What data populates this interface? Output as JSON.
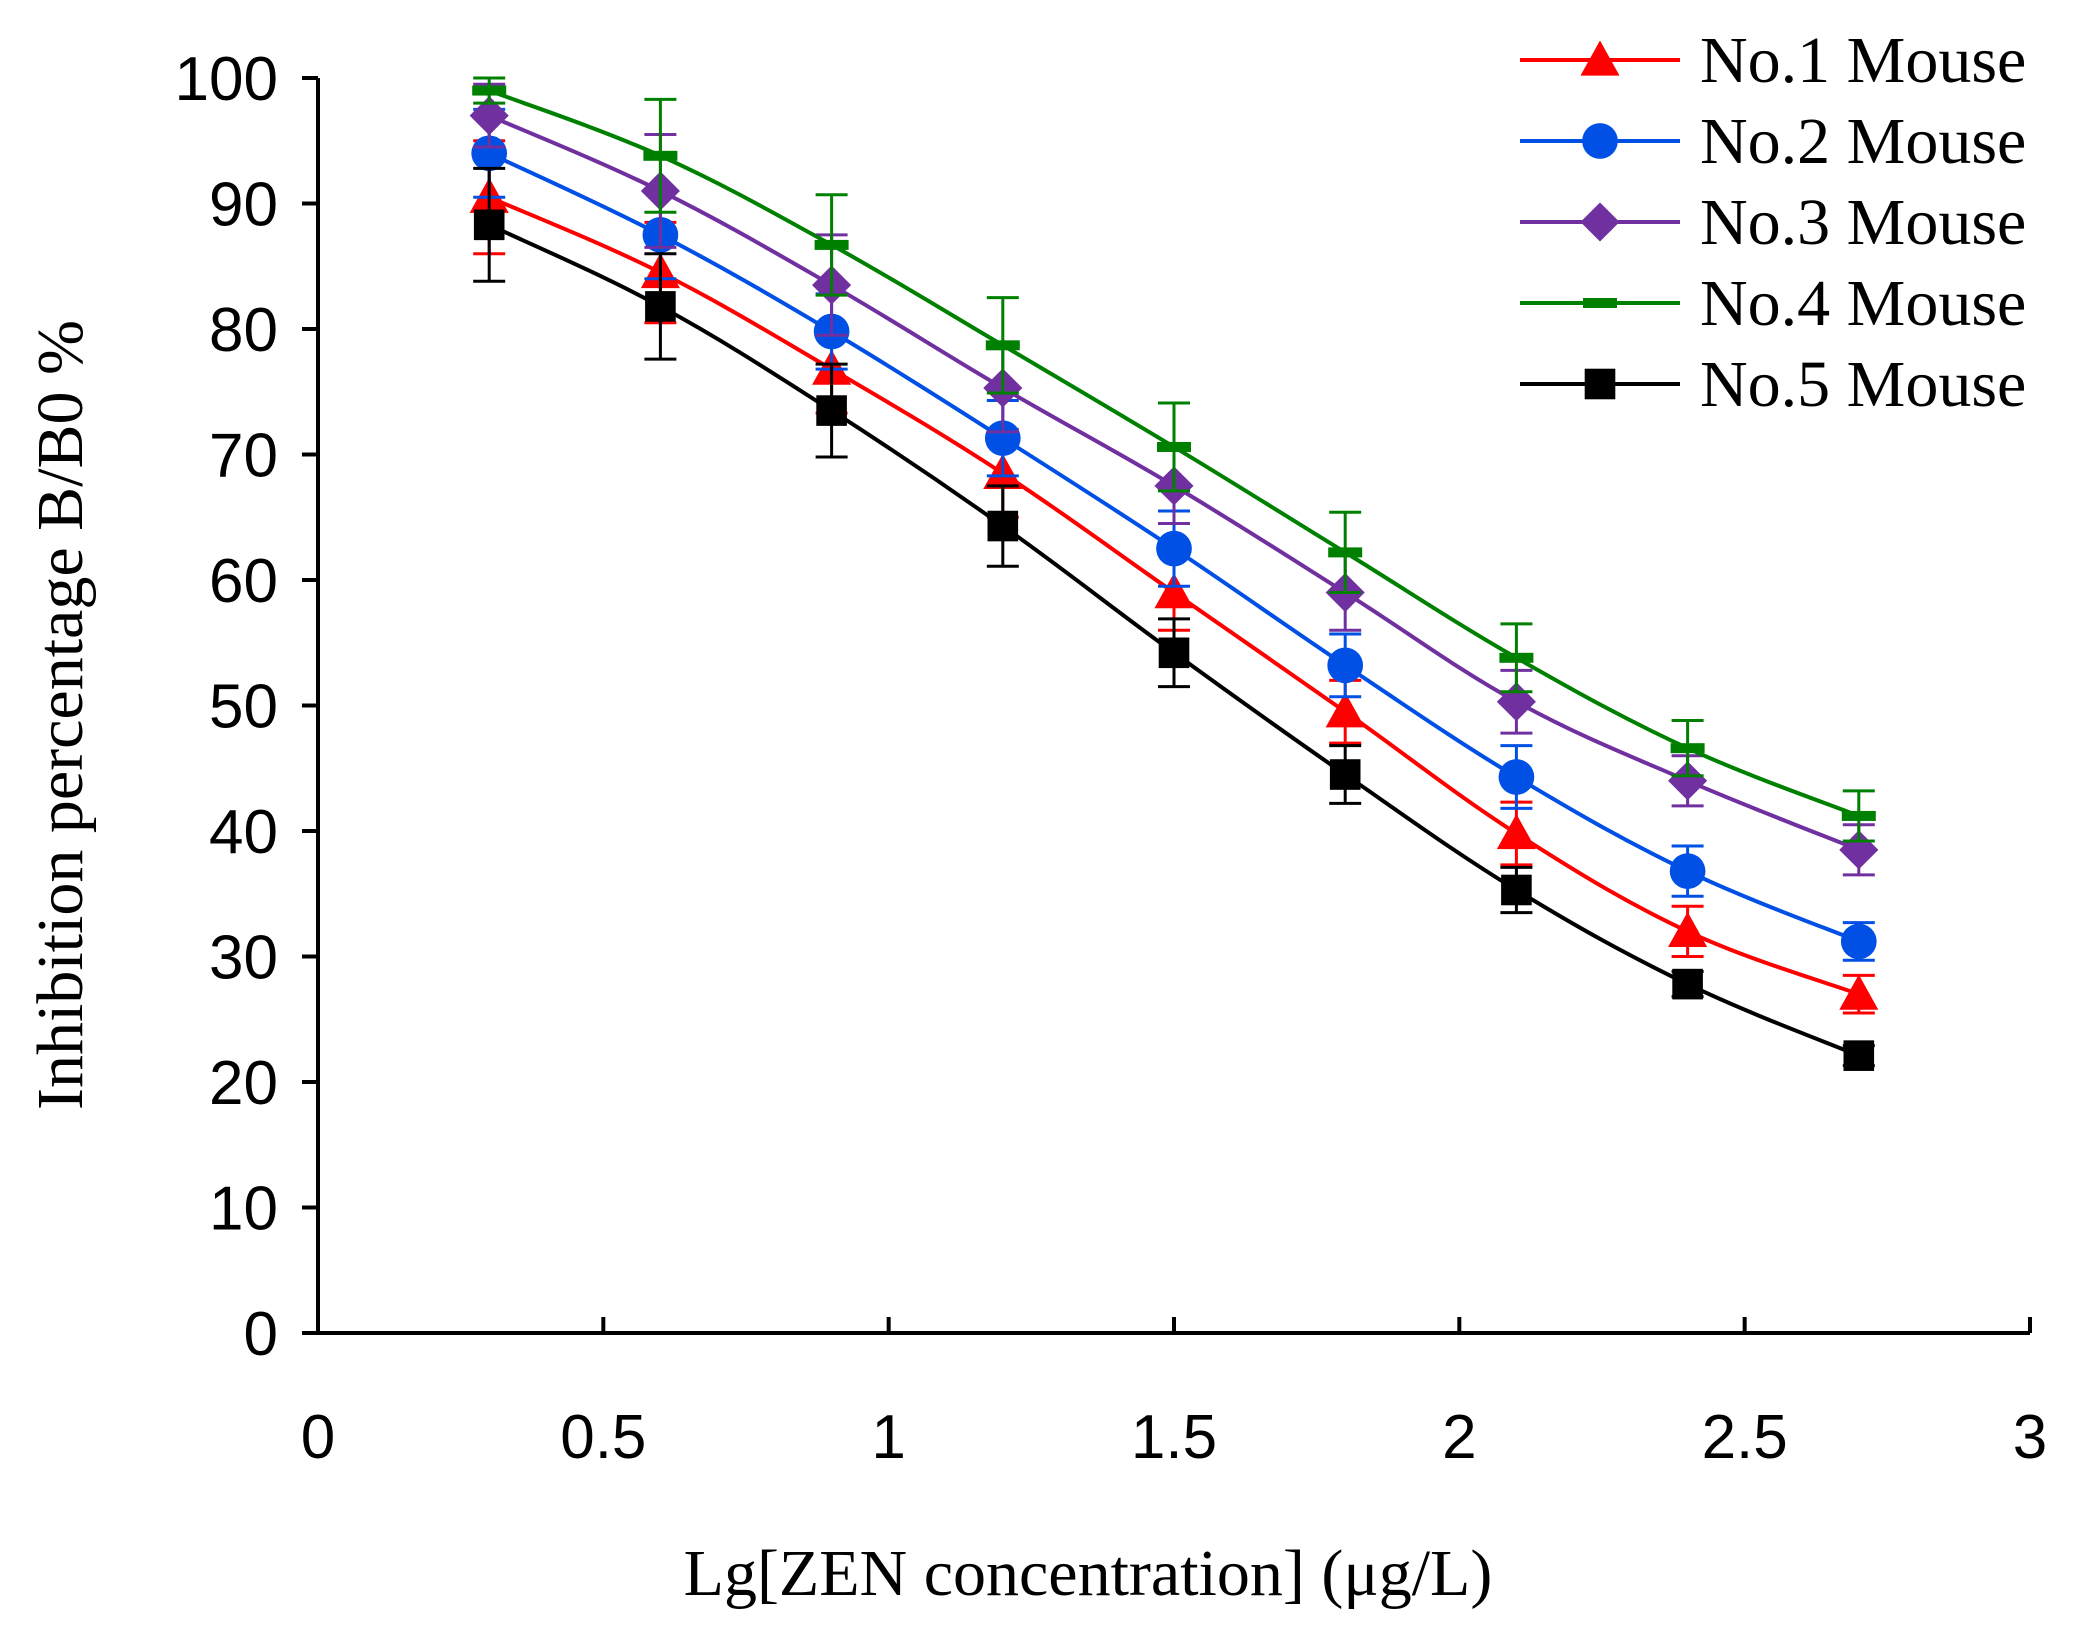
{
  "chart_data": {
    "type": "line",
    "title": "",
    "xlabel": "Lg[ZEN concentration] (μg/L)",
    "ylabel": "Inhibition percentage B/B0 %",
    "xlim": [
      0,
      3
    ],
    "ylim": [
      0,
      100
    ],
    "xticks": [
      0,
      0.5,
      1,
      1.5,
      2,
      2.5,
      3
    ],
    "xtick_labels": [
      "0",
      "0.5",
      "1",
      "1.5",
      "2",
      "2.5",
      "3"
    ],
    "yticks": [
      0,
      10,
      20,
      30,
      40,
      50,
      60,
      70,
      80,
      90,
      100
    ],
    "ytick_labels": [
      "0",
      "10",
      "20",
      "30",
      "40",
      "50",
      "60",
      "70",
      "80",
      "90",
      "100"
    ],
    "grid": false,
    "legend_position": "top-right",
    "x": [
      0.3,
      0.6,
      0.9,
      1.2,
      1.5,
      1.8,
      2.1,
      2.4,
      2.7
    ],
    "series": [
      {
        "name": "No.1 Mouse",
        "color": "#ff0000",
        "marker": "triangle",
        "values": [
          90.5,
          84.5,
          76.8,
          68.5,
          59.0,
          49.5,
          39.8,
          32.0,
          27.0
        ],
        "errors": [
          4.5,
          4.0,
          3.5,
          3.5,
          3.0,
          2.5,
          2.5,
          2.0,
          1.5
        ]
      },
      {
        "name": "No.2 Mouse",
        "color": "#0050e6",
        "marker": "circle",
        "values": [
          94.0,
          87.5,
          79.8,
          71.3,
          62.5,
          53.2,
          44.3,
          36.8,
          31.2
        ],
        "errors": [
          3.5,
          3.5,
          3.0,
          3.0,
          3.0,
          2.5,
          2.5,
          2.0,
          1.5
        ]
      },
      {
        "name": "No.3 Mouse",
        "color": "#7030a0",
        "marker": "diamond",
        "values": [
          97.0,
          91.0,
          83.5,
          75.3,
          67.5,
          59.0,
          50.3,
          44.0,
          38.5
        ],
        "errors": [
          2.5,
          4.5,
          4.0,
          3.5,
          3.0,
          3.0,
          2.5,
          2.0,
          2.0
        ]
      },
      {
        "name": "No.4 Mouse",
        "color": "#008000",
        "marker": "dash",
        "values": [
          99.0,
          93.8,
          86.7,
          78.7,
          70.6,
          62.2,
          53.8,
          46.6,
          41.2
        ],
        "errors": [
          1.0,
          4.5,
          4.0,
          3.8,
          3.5,
          3.2,
          2.7,
          2.2,
          2.0
        ]
      },
      {
        "name": "No.5 Mouse",
        "color": "#000000",
        "marker": "square",
        "values": [
          88.3,
          81.8,
          73.5,
          64.3,
          54.2,
          44.5,
          35.3,
          27.8,
          22.1
        ],
        "errors": [
          4.5,
          4.2,
          3.7,
          3.2,
          2.7,
          2.3,
          1.8,
          1.0,
          0.8
        ]
      }
    ]
  }
}
